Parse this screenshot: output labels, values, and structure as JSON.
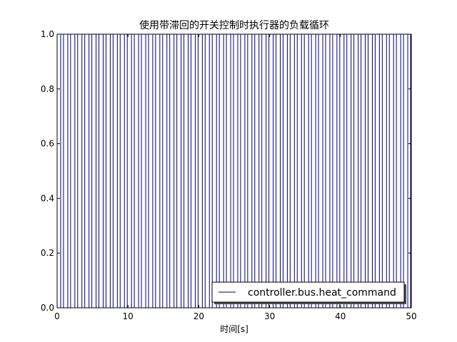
{
  "chart_data": {
    "type": "line",
    "title": "使用带滞回的开关控制时执行器的负载循环",
    "xlabel": "时间[s]",
    "ylabel": "",
    "xlim": [
      0,
      50
    ],
    "ylim": [
      0,
      1
    ],
    "x_ticks": [
      "0",
      "10",
      "20",
      "30",
      "40",
      "50"
    ],
    "y_ticks": [
      "0.0",
      "0.2",
      "0.4",
      "0.6",
      "0.8",
      "1.0"
    ],
    "grid": false,
    "legend_position": "lower-right",
    "series": [
      {
        "name": "controller.bus.heat_command",
        "color": "#000080",
        "style": "square-wave",
        "low": 0,
        "high": 1,
        "switch_times": [
          0.5,
          0.9,
          1.5,
          1.9,
          2.5,
          2.9,
          3.5,
          3.9,
          4.5,
          4.9,
          5.5,
          5.9,
          6.5,
          6.9,
          7.5,
          7.9,
          8.5,
          8.9,
          9.5,
          9.9,
          10.5,
          10.9,
          11.5,
          11.9,
          12.5,
          12.9,
          13.5,
          13.9,
          14.5,
          14.9,
          15.5,
          15.9,
          16.5,
          16.9,
          17.5,
          17.9,
          18.5,
          18.9,
          19.5,
          19.9,
          20.5,
          20.9,
          21.5,
          21.9,
          22.5,
          22.9,
          23.5,
          23.9,
          24.5,
          24.9,
          25.5,
          25.9,
          26.5,
          26.9,
          27.5,
          27.9,
          28.5,
          28.9,
          29.5,
          29.9,
          30.5,
          30.9,
          31.5,
          31.9,
          32.5,
          32.9,
          33.5,
          33.9,
          34.5,
          34.9,
          35.5,
          35.9,
          36.5,
          36.9,
          37.5,
          37.9,
          38.5,
          38.9,
          39.5,
          39.9,
          40.5,
          40.9,
          41.5,
          41.9,
          42.5,
          42.9,
          43.5,
          43.9,
          44.5,
          44.9,
          45.5,
          45.9,
          46.5,
          46.9,
          47.5,
          47.9,
          48.5,
          48.9,
          49.5,
          49.9
        ]
      }
    ]
  }
}
